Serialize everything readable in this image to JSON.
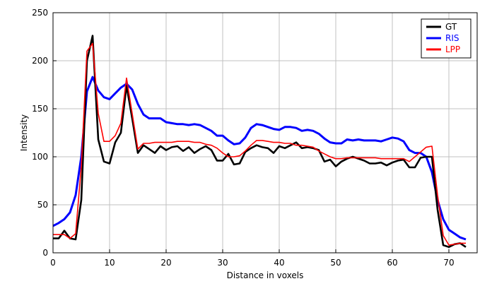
{
  "chart_data": {
    "type": "line",
    "xlabel": "Distance in voxels",
    "ylabel": "Intensity",
    "xlim": [
      0,
      75
    ],
    "ylim": [
      0,
      250
    ],
    "xticks": [
      0,
      10,
      20,
      30,
      40,
      50,
      60,
      70
    ],
    "yticks": [
      0,
      50,
      100,
      150,
      200,
      250
    ],
    "grid": true,
    "legend_position": "top-right",
    "x": [
      0,
      1,
      2,
      3,
      4,
      5,
      6,
      7,
      8,
      9,
      10,
      11,
      12,
      13,
      14,
      15,
      16,
      17,
      18,
      19,
      20,
      21,
      22,
      23,
      24,
      25,
      26,
      27,
      28,
      29,
      30,
      31,
      32,
      33,
      34,
      35,
      36,
      37,
      38,
      39,
      40,
      41,
      42,
      43,
      44,
      45,
      46,
      47,
      48,
      49,
      50,
      51,
      52,
      53,
      54,
      55,
      56,
      57,
      58,
      59,
      60,
      61,
      62,
      63,
      64,
      65,
      66,
      67,
      68,
      69,
      70,
      71,
      72,
      73
    ],
    "series": [
      {
        "name": "GT",
        "color": "#000000",
        "values": [
          15,
          15,
          23,
          15,
          14,
          55,
          200,
          226,
          118,
          95,
          93,
          115,
          125,
          174,
          140,
          104,
          112,
          108,
          104,
          111,
          107,
          110,
          111,
          106,
          110,
          104,
          108,
          111,
          107,
          96,
          96,
          103,
          92,
          93,
          105,
          109,
          112,
          110,
          109,
          104,
          111,
          109,
          112,
          115,
          109,
          110,
          109,
          107,
          95,
          97,
          90,
          95,
          98,
          100,
          98,
          96,
          93,
          93,
          94,
          91,
          94,
          96,
          97,
          89,
          89,
          99,
          100,
          100,
          45,
          8,
          6,
          9,
          10,
          6
        ]
      },
      {
        "name": "RIS",
        "color": "#0000ff",
        "values": [
          28,
          31,
          35,
          42,
          60,
          100,
          168,
          183,
          169,
          162,
          160,
          166,
          172,
          176,
          170,
          155,
          144,
          140,
          140,
          140,
          136,
          135,
          134,
          134,
          133,
          134,
          133,
          130,
          127,
          122,
          122,
          117,
          113,
          114,
          120,
          130,
          134,
          133,
          131,
          129,
          128,
          131,
          131,
          130,
          127,
          128,
          127,
          124,
          119,
          115,
          114,
          114,
          118,
          117,
          118,
          117,
          117,
          117,
          116,
          118,
          120,
          119,
          116,
          107,
          104,
          104,
          100,
          84,
          55,
          35,
          24,
          20,
          16,
          14
        ]
      },
      {
        "name": "LPP",
        "color": "#ff0000",
        "values": [
          19,
          19,
          19,
          15,
          20,
          90,
          210,
          218,
          145,
          116,
          116,
          122,
          135,
          182,
          145,
          108,
          114,
          114,
          115,
          115,
          115,
          115,
          116,
          116,
          116,
          115,
          115,
          113,
          112,
          109,
          104,
          100,
          100,
          101,
          106,
          112,
          117,
          117,
          116,
          115,
          115,
          114,
          114,
          112,
          112,
          111,
          110,
          106,
          103,
          100,
          98,
          98,
          99,
          99,
          99,
          99,
          99,
          99,
          98,
          98,
          98,
          98,
          98,
          95,
          100,
          105,
          110,
          111,
          60,
          18,
          8,
          9,
          10,
          10
        ]
      }
    ]
  }
}
